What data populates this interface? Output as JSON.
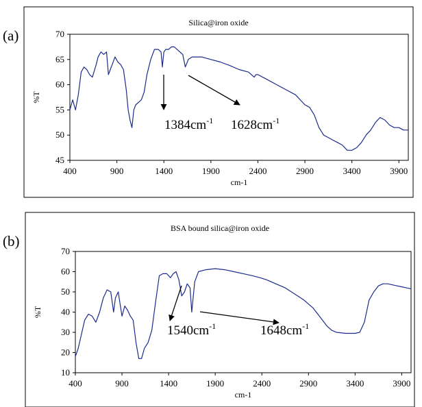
{
  "chart_data": [
    {
      "panel_label": "(a)",
      "type": "line",
      "title": "Silica@iron oxide",
      "xlabel": "cm-1",
      "ylabel": "%T",
      "xlim": [
        400,
        4000
      ],
      "ylim": [
        45,
        70
      ],
      "xticks": [
        400,
        900,
        1400,
        1900,
        2400,
        2900,
        3400,
        3900
      ],
      "yticks": [
        45,
        50,
        55,
        60,
        65,
        70
      ],
      "grid": false,
      "legend": "none",
      "line_color": "#1a2a8c",
      "series": [
        {
          "x": [
            400,
            430,
            460,
            490,
            520,
            550,
            580,
            610,
            640,
            680,
            700,
            730,
            760,
            790,
            810,
            830,
            850,
            880,
            910,
            940,
            970,
            1000,
            1020,
            1040,
            1060,
            1080,
            1100,
            1130,
            1160,
            1190,
            1220,
            1260,
            1300,
            1340,
            1370,
            1384,
            1400,
            1420,
            1450,
            1480,
            1510,
            1540,
            1570,
            1600,
            1628,
            1660,
            1700,
            1800,
            1900,
            2000,
            2100,
            2200,
            2300,
            2360,
            2380,
            2400,
            2500,
            2600,
            2700,
            2800,
            2900,
            2950,
            3000,
            3050,
            3100,
            3150,
            3200,
            3250,
            3300,
            3350,
            3400,
            3450,
            3500,
            3550,
            3600,
            3650,
            3700,
            3750,
            3800,
            3850,
            3900,
            3950,
            4000
          ],
          "y": [
            55,
            57,
            55,
            58,
            62.5,
            63.5,
            63,
            62,
            61.5,
            64,
            65.5,
            66.5,
            66,
            66.5,
            62,
            63,
            64,
            65.5,
            64.5,
            64,
            63,
            59,
            55,
            53,
            51.5,
            55,
            56,
            56.5,
            57,
            58.5,
            62,
            65,
            67,
            67,
            66.5,
            63.5,
            66.5,
            67,
            67,
            67.5,
            67.5,
            67,
            66.5,
            66,
            63.5,
            65,
            65.5,
            65.5,
            65,
            64.5,
            63.8,
            63,
            62.5,
            61.5,
            62,
            62,
            61,
            60,
            59,
            58,
            56,
            55.5,
            54,
            51.5,
            50,
            49.5,
            49,
            48.5,
            48,
            47,
            47,
            47.5,
            48.5,
            50,
            51,
            52.5,
            53.5,
            53,
            52,
            51.5,
            51.5,
            51,
            51
          ]
        }
      ],
      "annotations": [
        {
          "text": "1384cm",
          "sup": "-1",
          "points_to_x": 1384
        },
        {
          "text": "1628cm",
          "sup": "-1",
          "points_to_x": 1628
        }
      ]
    },
    {
      "panel_label": "(b)",
      "type": "line",
      "title": "BSA bound silica@iron oxide",
      "xlabel": "cm-1",
      "ylabel": "%T",
      "xlim": [
        400,
        4000
      ],
      "ylim": [
        10,
        70
      ],
      "xticks": [
        400,
        900,
        1400,
        1900,
        2400,
        2900,
        3400,
        3900
      ],
      "yticks": [
        10,
        20,
        30,
        40,
        50,
        60,
        70
      ],
      "grid": false,
      "legend": "none",
      "line_color": "#1a2a8c",
      "series": [
        {
          "x": [
            400,
            430,
            460,
            500,
            540,
            580,
            620,
            660,
            700,
            740,
            780,
            810,
            830,
            860,
            880,
            900,
            930,
            960,
            990,
            1020,
            1050,
            1080,
            1110,
            1140,
            1180,
            1220,
            1260,
            1300,
            1340,
            1380,
            1420,
            1450,
            1480,
            1510,
            1540,
            1570,
            1600,
            1630,
            1648,
            1680,
            1720,
            1800,
            1900,
            2000,
            2100,
            2200,
            2300,
            2380,
            2450,
            2550,
            2650,
            2750,
            2850,
            2950,
            3000,
            3050,
            3100,
            3150,
            3200,
            3300,
            3400,
            3450,
            3500,
            3550,
            3600,
            3650,
            3700,
            3750,
            3800,
            3850,
            3900,
            3950,
            4000
          ],
          "y": [
            18,
            22,
            28,
            36,
            39,
            38,
            35,
            40,
            47,
            51,
            50,
            40,
            47,
            50,
            44,
            38,
            43,
            41,
            38,
            36,
            25,
            17,
            17,
            22,
            25,
            31,
            45,
            58,
            59,
            59,
            57,
            59,
            60,
            56,
            48,
            50,
            54,
            52,
            40,
            55,
            60,
            61,
            61.5,
            61,
            60,
            59,
            58,
            57,
            56,
            54,
            52,
            49,
            46,
            42,
            39,
            36,
            33,
            31,
            30,
            29.5,
            29.5,
            30,
            35,
            46,
            50,
            53,
            54,
            54,
            53.5,
            53,
            52.5,
            52,
            51.5
          ]
        }
      ],
      "annotations": [
        {
          "text": "1540cm",
          "sup": "-1",
          "points_to_x": 1540
        },
        {
          "text": "1648cm",
          "sup": "-1",
          "points_to_x": 1648
        }
      ]
    }
  ]
}
